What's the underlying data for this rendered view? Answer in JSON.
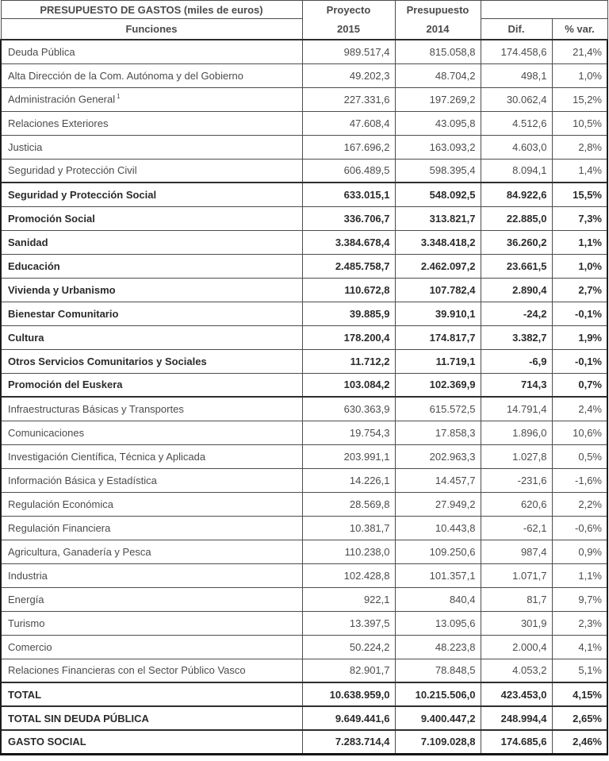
{
  "table": {
    "title": "PRESUPUESTO DE GASTOS (miles de euros)",
    "header": {
      "functions_label": "Funciones",
      "col_proyecto_line1": "Proyecto",
      "col_proyecto_line2": "2015",
      "col_presupuesto_line1": "Presupuesto",
      "col_presupuesto_line2": "2014",
      "col_dif": "Dif.",
      "col_var": "% var."
    },
    "rows": [
      {
        "label": "Deuda Pública",
        "p2015": "989.517,4",
        "p2014": "815.058,8",
        "dif": "174.458,6",
        "var": "21,4%",
        "bold": false,
        "section_top": false
      },
      {
        "label": "Alta Dirección de la Com. Autónoma y del Gobierno",
        "p2015": "49.202,3",
        "p2014": "48.704,2",
        "dif": "498,1",
        "var": "1,0%",
        "bold": false,
        "section_top": false
      },
      {
        "label": "Administración General",
        "sup": "1",
        "p2015": "227.331,6",
        "p2014": "197.269,2",
        "dif": "30.062,4",
        "var": "15,2%",
        "bold": false,
        "section_top": false
      },
      {
        "label": "Relaciones Exteriores",
        "p2015": "47.608,4",
        "p2014": "43.095,8",
        "dif": "4.512,6",
        "var": "10,5%",
        "bold": false,
        "section_top": false
      },
      {
        "label": "Justicia",
        "p2015": "167.696,2",
        "p2014": "163.093,2",
        "dif": "4.603,0",
        "var": "2,8%",
        "bold": false,
        "section_top": false
      },
      {
        "label": "Seguridad y Protección Civil",
        "p2015": "606.489,5",
        "p2014": "598.395,4",
        "dif": "8.094,1",
        "var": "1,4%",
        "bold": false,
        "section_top": false
      },
      {
        "label": "Seguridad y Protección Social",
        "p2015": "633.015,1",
        "p2014": "548.092,5",
        "dif": "84.922,6",
        "var": "15,5%",
        "bold": true,
        "section_top": true
      },
      {
        "label": "Promoción Social",
        "p2015": "336.706,7",
        "p2014": "313.821,7",
        "dif": "22.885,0",
        "var": "7,3%",
        "bold": true,
        "section_top": false
      },
      {
        "label": "Sanidad",
        "p2015": "3.384.678,4",
        "p2014": "3.348.418,2",
        "dif": "36.260,2",
        "var": "1,1%",
        "bold": true,
        "section_top": false
      },
      {
        "label": "Educación",
        "p2015": "2.485.758,7",
        "p2014": "2.462.097,2",
        "dif": "23.661,5",
        "var": "1,0%",
        "bold": true,
        "section_top": false
      },
      {
        "label": "Vivienda y Urbanismo",
        "p2015": "110.672,8",
        "p2014": "107.782,4",
        "dif": "2.890,4",
        "var": "2,7%",
        "bold": true,
        "section_top": false
      },
      {
        "label": "Bienestar Comunitario",
        "p2015": "39.885,9",
        "p2014": "39.910,1",
        "dif": "-24,2",
        "var": "-0,1%",
        "bold": true,
        "section_top": false
      },
      {
        "label": "Cultura",
        "p2015": "178.200,4",
        "p2014": "174.817,7",
        "dif": "3.382,7",
        "var": "1,9%",
        "bold": true,
        "section_top": false
      },
      {
        "label": "Otros Servicios Comunitarios y Sociales",
        "p2015": "11.712,2",
        "p2014": "11.719,1",
        "dif": "-6,9",
        "var": "-0,1%",
        "bold": true,
        "section_top": false
      },
      {
        "label": "Promoción del Euskera",
        "p2015": "103.084,2",
        "p2014": "102.369,9",
        "dif": "714,3",
        "var": "0,7%",
        "bold": true,
        "section_top": false
      },
      {
        "label": "Infraestructuras Básicas y Transportes",
        "p2015": "630.363,9",
        "p2014": "615.572,5",
        "dif": "14.791,4",
        "var": "2,4%",
        "bold": false,
        "section_top": true
      },
      {
        "label": "Comunicaciones",
        "p2015": "19.754,3",
        "p2014": "17.858,3",
        "dif": "1.896,0",
        "var": "10,6%",
        "bold": false,
        "section_top": false
      },
      {
        "label": "Investigación Científica, Técnica y Aplicada",
        "p2015": "203.991,1",
        "p2014": "202.963,3",
        "dif": "1.027,8",
        "var": "0,5%",
        "bold": false,
        "section_top": false
      },
      {
        "label": "Información Básica y Estadística",
        "p2015": "14.226,1",
        "p2014": "14.457,7",
        "dif": "-231,6",
        "var": "-1,6%",
        "bold": false,
        "section_top": false
      },
      {
        "label": "Regulación Económica",
        "p2015": "28.569,8",
        "p2014": "27.949,2",
        "dif": "620,6",
        "var": "2,2%",
        "bold": false,
        "section_top": false
      },
      {
        "label": "Regulación Financiera",
        "p2015": "10.381,7",
        "p2014": "10.443,8",
        "dif": "-62,1",
        "var": "-0,6%",
        "bold": false,
        "section_top": false
      },
      {
        "label": "Agricultura, Ganadería y Pesca",
        "p2015": "110.238,0",
        "p2014": "109.250,6",
        "dif": "987,4",
        "var": "0,9%",
        "bold": false,
        "section_top": false
      },
      {
        "label": "Industria",
        "p2015": "102.428,8",
        "p2014": "101.357,1",
        "dif": "1.071,7",
        "var": "1,1%",
        "bold": false,
        "section_top": false
      },
      {
        "label": "Energía",
        "p2015": "922,1",
        "p2014": "840,4",
        "dif": "81,7",
        "var": "9,7%",
        "bold": false,
        "section_top": false
      },
      {
        "label": "Turismo",
        "p2015": "13.397,5",
        "p2014": "13.095,6",
        "dif": "301,9",
        "var": "2,3%",
        "bold": false,
        "section_top": false
      },
      {
        "label": "Comercio",
        "p2015": "50.224,2",
        "p2014": "48.223,8",
        "dif": "2.000,4",
        "var": "4,1%",
        "bold": false,
        "section_top": false
      },
      {
        "label": "Relaciones Financieras con el Sector Público Vasco",
        "p2015": "82.901,7",
        "p2014": "78.848,5",
        "dif": "4.053,2",
        "var": "5,1%",
        "bold": false,
        "section_top": false
      },
      {
        "label": "TOTAL",
        "p2015": "10.638.959,0",
        "p2014": "10.215.506,0",
        "dif": "423.453,0",
        "var": "4,15%",
        "bold": true,
        "section_top": true
      },
      {
        "label": "TOTAL SIN DEUDA PÚBLICA",
        "p2015": "9.649.441,6",
        "p2014": "9.400.447,2",
        "dif": "248.994,4",
        "var": "2,65%",
        "bold": true,
        "section_top": true
      },
      {
        "label": "GASTO SOCIAL",
        "p2015": "7.283.714,4",
        "p2014": "7.109.028,8",
        "dif": "174.685,6",
        "var": "2,46%",
        "bold": true,
        "section_top": true
      }
    ]
  }
}
